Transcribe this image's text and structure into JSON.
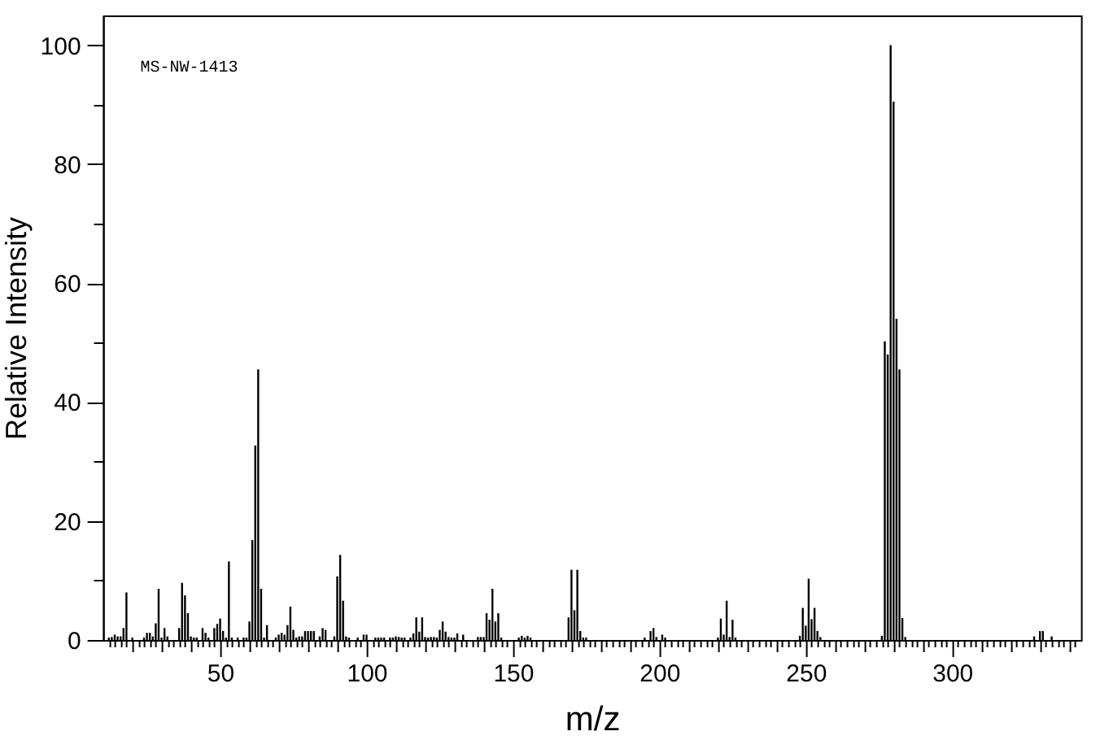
{
  "chart_data": {
    "type": "bar",
    "color": "#000000",
    "xlabel": "m/z",
    "ylabel": "Relative Intensity",
    "annotations": [
      "MS-NW-1413"
    ],
    "x": [
      12,
      13,
      14,
      15,
      16,
      17,
      18,
      20,
      24,
      25,
      26,
      27,
      28,
      29,
      30,
      31,
      32,
      36,
      37,
      38,
      39,
      40,
      41,
      42,
      44,
      45,
      46,
      48,
      49,
      50,
      51,
      52,
      53,
      54,
      56,
      58,
      59,
      60,
      61,
      62,
      63,
      64,
      65,
      66,
      69,
      70,
      71,
      72,
      73,
      74,
      75,
      76,
      77,
      78,
      79,
      80,
      81,
      82,
      84,
      85,
      86,
      89,
      90,
      91,
      92,
      93,
      94,
      97,
      99,
      100,
      103,
      104,
      105,
      106,
      108,
      109,
      110,
      111,
      112,
      113,
      115,
      116,
      117,
      118,
      119,
      120,
      121,
      122,
      123,
      124,
      125,
      126,
      127,
      128,
      129,
      130,
      131,
      133,
      138,
      139,
      140,
      141,
      142,
      143,
      144,
      145,
      146,
      152,
      153,
      154,
      155,
      156,
      169,
      170,
      171,
      172,
      173,
      174,
      175,
      195,
      197,
      198,
      199,
      201,
      202,
      220,
      221,
      222,
      223,
      224,
      225,
      226,
      248,
      249,
      250,
      251,
      252,
      253,
      254,
      255,
      276,
      277,
      278,
      279,
      280,
      281,
      282,
      283,
      284,
      328,
      330,
      331,
      334
    ],
    "values": [
      0.4,
      0.5,
      0.9,
      0.6,
      0.6,
      2.0,
      8.0,
      0.4,
      0.4,
      1.2,
      1.2,
      0.6,
      2.8,
      8.6,
      0.4,
      2.0,
      0.6,
      2.0,
      9.6,
      7.5,
      4.5,
      0.6,
      0.4,
      0.4,
      2.0,
      1.2,
      0.4,
      2.0,
      2.7,
      3.6,
      1.5,
      0.4,
      13.2,
      0.4,
      0.4,
      0.4,
      0.4,
      3.1,
      16.8,
      32.7,
      45.5,
      8.6,
      0.4,
      2.5,
      0.4,
      0.9,
      1.2,
      0.9,
      2.5,
      5.6,
      1.7,
      0.4,
      0.6,
      0.6,
      1.5,
      1.5,
      1.5,
      1.5,
      0.6,
      2.0,
      1.7,
      0.6,
      10.7,
      14.3,
      6.6,
      0.6,
      0.4,
      0.4,
      0.9,
      0.9,
      0.4,
      0.4,
      0.4,
      0.4,
      0.4,
      0.4,
      0.6,
      0.5,
      0.4,
      0.4,
      0.4,
      1.1,
      3.8,
      1.4,
      3.8,
      0.5,
      0.4,
      0.5,
      0.5,
      0.4,
      1.7,
      3.1,
      1.4,
      0.5,
      0.4,
      0.4,
      1.1,
      0.9,
      0.5,
      0.5,
      0.5,
      4.5,
      3.4,
      8.6,
      3.1,
      4.5,
      0.4,
      0.4,
      0.7,
      0.4,
      0.7,
      0.4,
      3.8,
      11.8,
      5.0,
      11.8,
      1.5,
      0.4,
      0.4,
      0.4,
      1.5,
      2.0,
      0.5,
      0.9,
      0.4,
      0.4,
      3.6,
      0.9,
      6.6,
      0.5,
      3.4,
      0.4,
      0.7,
      5.4,
      2.4,
      10.3,
      3.5,
      5.4,
      1.5,
      0.5,
      0.7,
      50.2,
      48.0,
      100,
      90.5,
      54.0,
      45.5,
      3.7,
      0.5,
      0.6,
      1.5,
      1.5,
      0.6
    ],
    "xlim": [
      10,
      344
    ],
    "ylim": [
      0,
      105
    ],
    "xticks": [
      {
        "value": 12,
        "label": null
      },
      {
        "value": 14,
        "label": null
      },
      {
        "value": 16,
        "label": null
      },
      {
        "value": 18,
        "label": null
      },
      {
        "value": 20,
        "label": null
      },
      {
        "value": 22,
        "label": null
      },
      {
        "value": 24,
        "label": null
      },
      {
        "value": 26,
        "label": null
      },
      {
        "value": 28,
        "label": null
      },
      {
        "value": 30,
        "label": null
      },
      {
        "value": 32,
        "label": null
      },
      {
        "value": 34,
        "label": null
      },
      {
        "value": 36,
        "label": null
      },
      {
        "value": 38,
        "label": null
      },
      {
        "value": 40,
        "label": null
      },
      {
        "value": 42,
        "label": null
      },
      {
        "value": 44,
        "label": null
      },
      {
        "value": 46,
        "label": null
      },
      {
        "value": 48,
        "label": null
      },
      50,
      {
        "value": 52,
        "label": null
      },
      {
        "value": 54,
        "label": null
      },
      {
        "value": 56,
        "label": null
      },
      {
        "value": 58,
        "label": null
      },
      {
        "value": 60,
        "label": null
      },
      {
        "value": 62,
        "label": null
      },
      {
        "value": 64,
        "label": null
      },
      {
        "value": 66,
        "label": null
      },
      {
        "value": 68,
        "label": null
      },
      {
        "value": 70,
        "label": null
      },
      {
        "value": 72,
        "label": null
      },
      {
        "value": 74,
        "label": null
      },
      {
        "value": 76,
        "label": null
      },
      {
        "value": 78,
        "label": null
      },
      {
        "value": 80,
        "label": null
      },
      {
        "value": 82,
        "label": null
      },
      {
        "value": 84,
        "label": null
      },
      {
        "value": 86,
        "label": null
      },
      {
        "value": 88,
        "label": null
      },
      {
        "value": 90,
        "label": null
      },
      {
        "value": 92,
        "label": null
      },
      {
        "value": 94,
        "label": null
      },
      {
        "value": 96,
        "label": null
      },
      {
        "value": 98,
        "label": null
      },
      100,
      {
        "value": 102,
        "label": null
      },
      {
        "value": 104,
        "label": null
      },
      {
        "value": 106,
        "label": null
      },
      {
        "value": 108,
        "label": null
      },
      {
        "value": 110,
        "label": null
      },
      {
        "value": 112,
        "label": null
      },
      {
        "value": 114,
        "label": null
      },
      {
        "value": 116,
        "label": null
      },
      {
        "value": 118,
        "label": null
      },
      {
        "value": 120,
        "label": null
      },
      {
        "value": 122,
        "label": null
      },
      {
        "value": 124,
        "label": null
      },
      {
        "value": 126,
        "label": null
      },
      {
        "value": 128,
        "label": null
      },
      {
        "value": 130,
        "label": null
      },
      {
        "value": 132,
        "label": null
      },
      {
        "value": 134,
        "label": null
      },
      {
        "value": 136,
        "label": null
      },
      {
        "value": 138,
        "label": null
      },
      {
        "value": 140,
        "label": null
      },
      {
        "value": 142,
        "label": null
      },
      {
        "value": 144,
        "label": null
      },
      {
        "value": 146,
        "label": null
      },
      {
        "value": 148,
        "label": null
      },
      150,
      {
        "value": 152,
        "label": null
      },
      {
        "value": 154,
        "label": null
      },
      {
        "value": 156,
        "label": null
      },
      {
        "value": 158,
        "label": null
      },
      {
        "value": 160,
        "label": null
      },
      {
        "value": 162,
        "label": null
      },
      {
        "value": 164,
        "label": null
      },
      {
        "value": 166,
        "label": null
      },
      {
        "value": 168,
        "label": null
      },
      {
        "value": 170,
        "label": null
      },
      {
        "value": 172,
        "label": null
      },
      {
        "value": 174,
        "label": null
      },
      {
        "value": 176,
        "label": null
      },
      {
        "value": 178,
        "label": null
      },
      {
        "value": 180,
        "label": null
      },
      {
        "value": 182,
        "label": null
      },
      {
        "value": 184,
        "label": null
      },
      {
        "value": 186,
        "label": null
      },
      {
        "value": 188,
        "label": null
      },
      {
        "value": 190,
        "label": null
      },
      {
        "value": 192,
        "label": null
      },
      {
        "value": 194,
        "label": null
      },
      {
        "value": 196,
        "label": null
      },
      {
        "value": 198,
        "label": null
      },
      200,
      {
        "value": 202,
        "label": null
      },
      {
        "value": 204,
        "label": null
      },
      {
        "value": 206,
        "label": null
      },
      {
        "value": 208,
        "label": null
      },
      {
        "value": 210,
        "label": null
      },
      {
        "value": 212,
        "label": null
      },
      {
        "value": 214,
        "label": null
      },
      {
        "value": 216,
        "label": null
      },
      {
        "value": 218,
        "label": null
      },
      {
        "value": 220,
        "label": null
      },
      {
        "value": 222,
        "label": null
      },
      {
        "value": 224,
        "label": null
      },
      {
        "value": 226,
        "label": null
      },
      {
        "value": 228,
        "label": null
      },
      {
        "value": 230,
        "label": null
      },
      {
        "value": 232,
        "label": null
      },
      {
        "value": 234,
        "label": null
      },
      {
        "value": 236,
        "label": null
      },
      {
        "value": 238,
        "label": null
      },
      {
        "value": 240,
        "label": null
      },
      {
        "value": 242,
        "label": null
      },
      {
        "value": 244,
        "label": null
      },
      {
        "value": 246,
        "label": null
      },
      {
        "value": 248,
        "label": null
      },
      250,
      {
        "value": 252,
        "label": null
      },
      {
        "value": 254,
        "label": null
      },
      {
        "value": 256,
        "label": null
      },
      {
        "value": 258,
        "label": null
      },
      {
        "value": 260,
        "label": null
      },
      {
        "value": 262,
        "label": null
      },
      {
        "value": 264,
        "label": null
      },
      {
        "value": 266,
        "label": null
      },
      {
        "value": 268,
        "label": null
      },
      {
        "value": 270,
        "label": null
      },
      {
        "value": 272,
        "label": null
      },
      {
        "value": 274,
        "label": null
      },
      {
        "value": 276,
        "label": null
      },
      {
        "value": 278,
        "label": null
      },
      {
        "value": 280,
        "label": null
      },
      {
        "value": 282,
        "label": null
      },
      {
        "value": 284,
        "label": null
      },
      {
        "value": 286,
        "label": null
      },
      {
        "value": 288,
        "label": null
      },
      {
        "value": 290,
        "label": null
      },
      {
        "value": 292,
        "label": null
      },
      {
        "value": 294,
        "label": null
      },
      {
        "value": 296,
        "label": null
      },
      {
        "value": 298,
        "label": null
      },
      300,
      {
        "value": 302,
        "label": null
      },
      {
        "value": 304,
        "label": null
      },
      {
        "value": 306,
        "label": null
      },
      {
        "value": 308,
        "label": null
      },
      {
        "value": 310,
        "label": null
      },
      {
        "value": 312,
        "label": null
      },
      {
        "value": 314,
        "label": null
      },
      {
        "value": 316,
        "label": null
      },
      {
        "value": 318,
        "label": null
      },
      {
        "value": 320,
        "label": null
      },
      {
        "value": 322,
        "label": null
      },
      {
        "value": 324,
        "label": null
      },
      {
        "value": 326,
        "label": null
      },
      {
        "value": 328,
        "label": null
      },
      {
        "value": 330,
        "label": null
      },
      {
        "value": 332,
        "label": null
      },
      {
        "value": 334,
        "label": null
      },
      {
        "value": 336,
        "label": null
      },
      {
        "value": 338,
        "label": null
      },
      {
        "value": 340,
        "label": null
      },
      {
        "value": 342,
        "label": null
      }
    ],
    "yticks": [
      0,
      {
        "value": 10,
        "label": null
      },
      20,
      {
        "value": 30,
        "label": null
      },
      40,
      {
        "value": 50,
        "label": null
      },
      60,
      {
        "value": 70,
        "label": null
      },
      80,
      {
        "value": 90,
        "label": null
      },
      100
    ]
  }
}
